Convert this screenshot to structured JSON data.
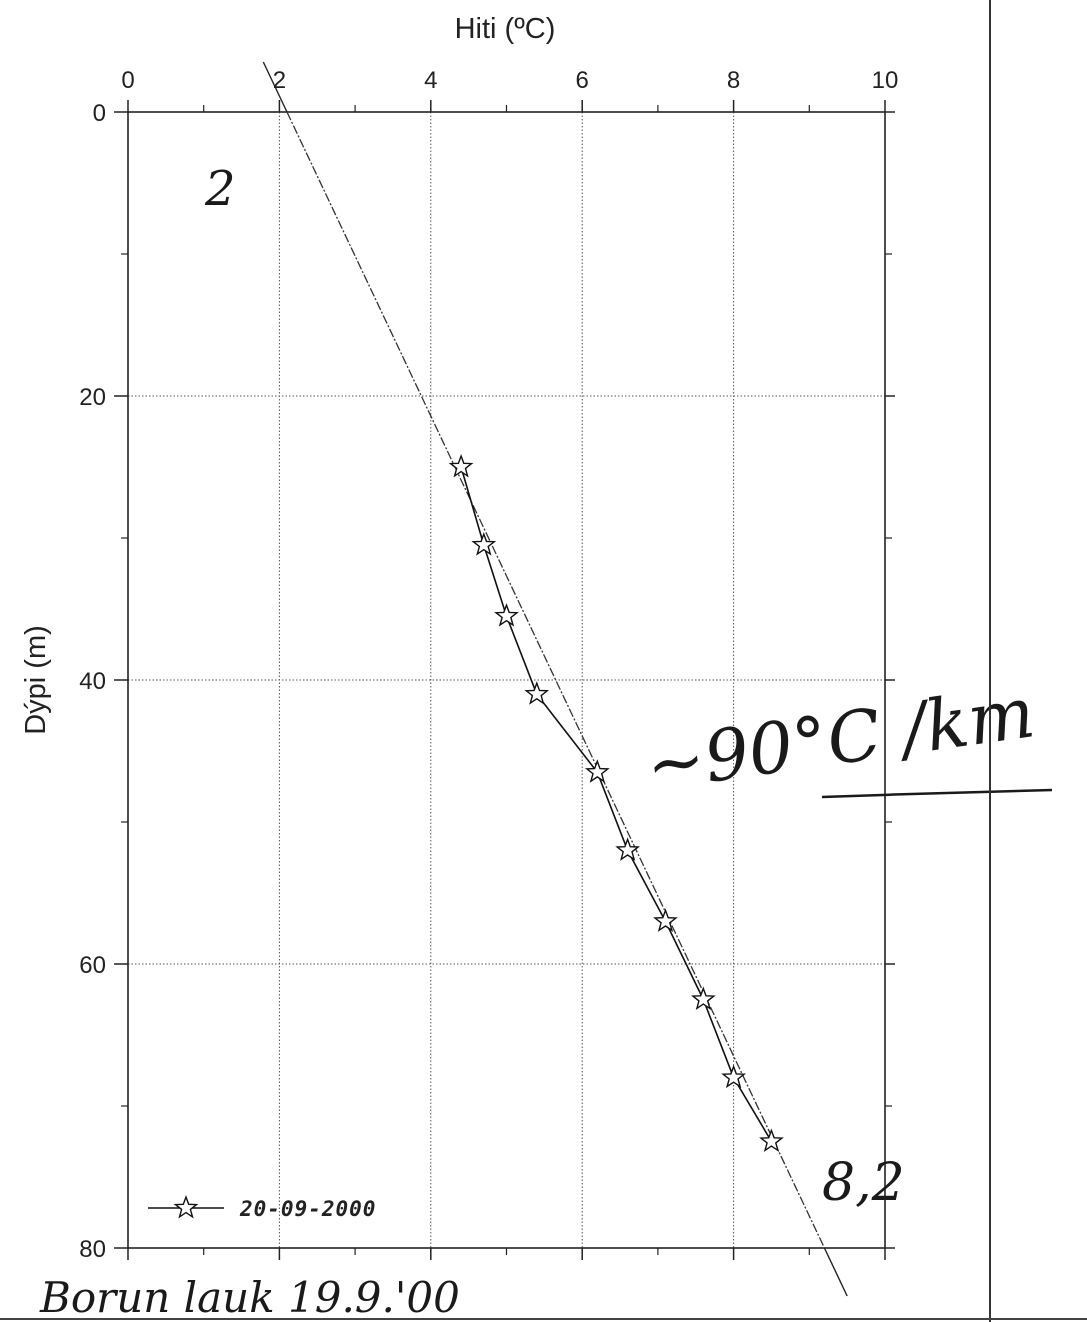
{
  "chart_data": {
    "type": "line",
    "xlabel": "Hiti (ºC)",
    "ylabel": "Dýpi (m)",
    "xlim": [
      0,
      10
    ],
    "ylim": [
      80,
      0
    ],
    "x_axis_position": "top",
    "y_inverted": true,
    "x_ticks": [
      0,
      2,
      4,
      6,
      8,
      10
    ],
    "y_ticks": [
      0,
      20,
      40,
      60,
      80
    ],
    "grid": true,
    "legend_position": "bottom-left",
    "series": [
      {
        "name": "20-09-2000",
        "marker": "star",
        "points": [
          {
            "x": 4.4,
            "y": 25
          },
          {
            "x": 4.7,
            "y": 30.5
          },
          {
            "x": 5.0,
            "y": 35.5
          },
          {
            "x": 5.4,
            "y": 41
          },
          {
            "x": 6.2,
            "y": 46.5
          },
          {
            "x": 6.6,
            "y": 52
          },
          {
            "x": 7.1,
            "y": 57
          },
          {
            "x": 7.6,
            "y": 62.5
          },
          {
            "x": 8.0,
            "y": 68
          },
          {
            "x": 8.5,
            "y": 72.5
          }
        ]
      }
    ],
    "trend_line": {
      "from": {
        "x": 2.1,
        "y": 0
      },
      "to": {
        "x": 9.2,
        "y": 80
      }
    }
  },
  "annotations": {
    "corner_mark": "2",
    "gradient_note": "~90°C /km",
    "bottom_value": "8,2",
    "footer_note": "Borun lauk 19.9.'00"
  }
}
